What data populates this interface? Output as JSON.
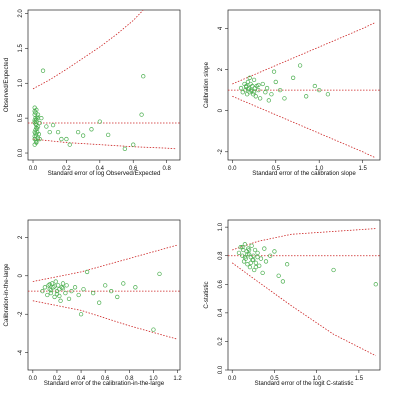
{
  "chart_data": [
    {
      "id": "p1",
      "type": "scatter",
      "xlabel": "Standard error of log Observed/Expected",
      "ylabel": "Observed/Expected",
      "xlim": [
        -0.03,
        0.88
      ],
      "ylim": [
        -0.1,
        2.05
      ],
      "x_ticks": [
        0.0,
        0.2,
        0.4,
        0.6,
        0.8
      ],
      "x_tick_labels": [
        "0.0",
        "0.2",
        "0.4",
        "0.6",
        "0.8"
      ],
      "y_ticks": [
        0.0,
        0.5,
        1.0,
        1.5,
        2.0
      ],
      "y_tick_labels": [
        "0.0",
        "0.5",
        "1.0",
        "1.5",
        "2.0"
      ],
      "x": [
        0.01,
        0.01,
        0.015,
        0.02,
        0.02,
        0.025,
        0.01,
        0.015,
        0.02,
        0.03,
        0.01,
        0.02,
        0.015,
        0.01,
        0.025,
        0.02,
        0.03,
        0.015,
        0.01,
        0.02,
        0.025,
        0.035,
        0.015,
        0.02,
        0.01,
        0.03,
        0.02,
        0.01,
        0.04,
        0.05,
        0.06,
        0.08,
        0.1,
        0.12,
        0.15,
        0.17,
        0.2,
        0.22,
        0.27,
        0.3,
        0.35,
        0.4,
        0.45,
        0.55,
        0.6,
        0.65,
        0.66,
        0.04,
        0.02,
        0.01,
        0.03
      ],
      "y": [
        0.6,
        0.55,
        0.5,
        0.45,
        0.4,
        0.35,
        0.3,
        0.28,
        0.25,
        0.22,
        0.2,
        0.18,
        0.42,
        0.47,
        0.52,
        0.62,
        0.38,
        0.33,
        0.44,
        0.48,
        0.3,
        0.27,
        0.58,
        0.36,
        0.24,
        0.5,
        0.16,
        0.65,
        0.43,
        0.5,
        1.18,
        0.38,
        0.3,
        0.4,
        0.3,
        0.2,
        0.2,
        0.12,
        0.3,
        0.25,
        0.34,
        0.45,
        0.26,
        0.06,
        0.12,
        0.55,
        1.1,
        0.2,
        0.15,
        0.12,
        0.55
      ],
      "reference_line": 0.43,
      "funnel_upper": [
        [
          0.0,
          0.92
        ],
        [
          0.1,
          1.05
        ],
        [
          0.2,
          1.2
        ],
        [
          0.3,
          1.36
        ],
        [
          0.4,
          1.52
        ],
        [
          0.5,
          1.7
        ],
        [
          0.6,
          1.9
        ],
        [
          0.66,
          2.05
        ]
      ],
      "funnel_lower": [
        [
          0.0,
          0.2
        ],
        [
          0.2,
          0.15
        ],
        [
          0.4,
          0.12
        ],
        [
          0.6,
          0.09
        ],
        [
          0.8,
          0.07
        ],
        [
          0.86,
          0.06
        ]
      ],
      "point_color": "#4caf50",
      "highlight_color": "#e07070",
      "line_color": "#cc2222"
    },
    {
      "id": "p2",
      "type": "scatter",
      "xlabel": "Standard error of the calibration slope",
      "ylabel": "Calibration slope",
      "xlim": [
        -0.05,
        1.7
      ],
      "ylim": [
        -2.4,
        4.9
      ],
      "x_ticks": [
        0.0,
        0.5,
        1.0,
        1.5
      ],
      "x_tick_labels": [
        "0.0",
        "0.5",
        "1.0",
        "1.5"
      ],
      "y_ticks": [
        -2,
        0,
        2,
        4
      ],
      "y_tick_labels": [
        "-2",
        "0",
        "2",
        "4"
      ],
      "x": [
        0.1,
        0.12,
        0.14,
        0.15,
        0.16,
        0.17,
        0.18,
        0.19,
        0.2,
        0.21,
        0.22,
        0.23,
        0.24,
        0.25,
        0.26,
        0.27,
        0.28,
        0.3,
        0.32,
        0.35,
        0.38,
        0.4,
        0.42,
        0.45,
        0.48,
        0.5,
        0.55,
        0.6,
        0.7,
        0.78,
        0.85,
        0.95,
        1.0,
        1.1,
        0.2,
        0.25,
        0.18,
        0.3,
        0.22,
        0.16
      ],
      "y": [
        1.1,
        0.9,
        1.3,
        1.0,
        1.2,
        0.8,
        1.4,
        1.1,
        0.9,
        1.3,
        1.0,
        1.2,
        0.8,
        1.5,
        1.1,
        0.7,
        1.2,
        1.0,
        0.6,
        1.3,
        0.9,
        1.1,
        0.5,
        0.8,
        1.9,
        1.4,
        1.0,
        0.6,
        1.6,
        2.2,
        0.7,
        1.2,
        1.0,
        0.8,
        1.6,
        0.9,
        1.05,
        1.25,
        0.95,
        1.15
      ],
      "reference_line": 1.0,
      "funnel_upper": [
        [
          0.0,
          1.3
        ],
        [
          0.5,
          2.2
        ],
        [
          1.0,
          3.1
        ],
        [
          1.5,
          4.0
        ],
        [
          1.65,
          4.3
        ]
      ],
      "funnel_lower": [
        [
          0.0,
          0.7
        ],
        [
          0.5,
          -0.2
        ],
        [
          1.0,
          -1.1
        ],
        [
          1.5,
          -2.0
        ],
        [
          1.65,
          -2.3
        ]
      ],
      "point_color": "#4caf50",
      "highlight_color": "#e07070",
      "line_color": "#cc2222"
    },
    {
      "id": "p3",
      "type": "scatter",
      "xlabel": "Standard error of the calibration-in-the-large",
      "ylabel": "Calibration-in-the-large",
      "xlim": [
        -0.04,
        1.22
      ],
      "ylim": [
        -4.9,
        2.9
      ],
      "x_ticks": [
        0.0,
        0.2,
        0.4,
        0.6,
        0.8,
        1.0,
        1.2
      ],
      "x_tick_labels": [
        "0.0",
        "0.2",
        "0.4",
        "0.6",
        "0.8",
        "1.0",
        "1.2"
      ],
      "y_ticks": [
        -4,
        -2,
        0,
        2
      ],
      "y_tick_labels": [
        "-4",
        "-2",
        "0",
        "2"
      ],
      "x": [
        0.08,
        0.1,
        0.12,
        0.13,
        0.14,
        0.15,
        0.16,
        0.17,
        0.18,
        0.19,
        0.2,
        0.21,
        0.22,
        0.23,
        0.24,
        0.25,
        0.27,
        0.28,
        0.3,
        0.32,
        0.35,
        0.38,
        0.4,
        0.42,
        0.45,
        0.5,
        0.55,
        0.6,
        0.65,
        0.7,
        0.75,
        1.0,
        1.05,
        0.85,
        0.15,
        0.2,
        0.18,
        0.25,
        0.14,
        0.22
      ],
      "y": [
        -0.8,
        -0.6,
        -1.0,
        -0.5,
        -0.7,
        -0.9,
        -0.4,
        -0.6,
        -1.1,
        -0.3,
        -0.8,
        -0.5,
        -0.7,
        -1.3,
        -0.6,
        -0.4,
        -0.9,
        -0.5,
        -1.2,
        -0.8,
        -0.6,
        -1.0,
        -2.0,
        -0.7,
        0.2,
        -0.9,
        -1.4,
        -0.5,
        -0.8,
        -1.1,
        -0.4,
        -2.8,
        0.1,
        -0.6,
        -0.75,
        -0.95,
        -0.55,
        -0.65,
        -0.45,
        -1.05
      ],
      "reference_line": -0.8,
      "funnel_upper": [
        [
          0.0,
          -0.3
        ],
        [
          0.4,
          0.2
        ],
        [
          0.8,
          0.9
        ],
        [
          1.2,
          1.6
        ]
      ],
      "funnel_lower": [
        [
          0.0,
          -1.3
        ],
        [
          0.4,
          -1.8
        ],
        [
          0.8,
          -2.6
        ],
        [
          1.2,
          -3.3
        ]
      ],
      "point_color": "#4caf50",
      "highlight_color": "#e07070",
      "line_color": "#cc2222"
    },
    {
      "id": "p4",
      "type": "scatter",
      "xlabel": "Standard error of the logit C-statistic",
      "ylabel": "C-statistic",
      "xlim": [
        -0.05,
        1.75
      ],
      "ylim": [
        0.0,
        1.05
      ],
      "x_ticks": [
        0.0,
        0.5,
        1.0,
        1.5
      ],
      "x_tick_labels": [
        "0.0",
        "0.5",
        "1.0",
        "1.5"
      ],
      "y_ticks": [
        0.0,
        0.2,
        0.4,
        0.6,
        0.8,
        1.0
      ],
      "y_tick_labels": [
        "0.0",
        "0.2",
        "0.4",
        "0.6",
        "0.8",
        "1.0"
      ],
      "x": [
        0.08,
        0.1,
        0.12,
        0.13,
        0.14,
        0.15,
        0.16,
        0.17,
        0.18,
        0.19,
        0.2,
        0.21,
        0.22,
        0.23,
        0.24,
        0.25,
        0.26,
        0.27,
        0.28,
        0.3,
        0.32,
        0.34,
        0.36,
        0.38,
        0.4,
        0.45,
        0.5,
        0.55,
        0.6,
        0.65,
        1.2,
        1.7,
        0.15,
        0.2,
        0.25,
        0.18,
        0.22,
        0.12,
        0.3,
        0.28
      ],
      "y": [
        0.82,
        0.86,
        0.8,
        0.84,
        0.76,
        0.88,
        0.78,
        0.83,
        0.74,
        0.85,
        0.81,
        0.72,
        0.79,
        0.87,
        0.77,
        0.8,
        0.7,
        0.84,
        0.75,
        0.82,
        0.73,
        0.78,
        0.68,
        0.85,
        0.76,
        0.8,
        0.83,
        0.66,
        0.62,
        0.74,
        0.7,
        0.6,
        0.79,
        0.84,
        0.77,
        0.81,
        0.75,
        0.86,
        0.79,
        0.72
      ],
      "reference_line": 0.8,
      "funnel_upper": [
        [
          0.0,
          0.84
        ],
        [
          0.3,
          0.9
        ],
        [
          0.7,
          0.95
        ],
        [
          1.2,
          0.97
        ],
        [
          1.7,
          0.99
        ]
      ],
      "funnel_lower": [
        [
          0.0,
          0.75
        ],
        [
          0.3,
          0.62
        ],
        [
          0.7,
          0.45
        ],
        [
          1.2,
          0.25
        ],
        [
          1.7,
          0.1
        ]
      ],
      "point_color": "#4caf50",
      "highlight_color": "#e07070",
      "line_color": "#cc2222"
    }
  ]
}
